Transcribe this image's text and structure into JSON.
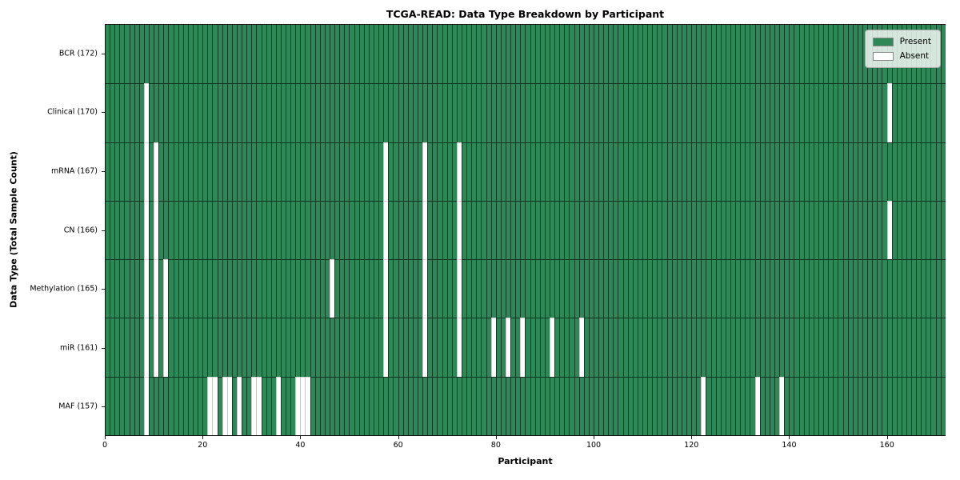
{
  "chart_data": {
    "type": "heatmap",
    "title": "TCGA-READ: Data Type Breakdown by Participant",
    "xlabel": "Participant",
    "ylabel": "Data Type (Total Sample Count)",
    "x_ticks": [
      0,
      20,
      40,
      60,
      80,
      100,
      120,
      140,
      160
    ],
    "xlim": [
      0,
      172
    ],
    "n_participants": 172,
    "grid": "cell-edge-lines",
    "cell_states": {
      "present_value": 1,
      "absent_value": 0
    },
    "legend": {
      "position": "upper right",
      "entries": [
        {
          "label": "Present",
          "color": "#2e8757"
        },
        {
          "label": "Absent",
          "color": "#ffffff"
        }
      ]
    },
    "rows": [
      {
        "label": "BCR (172)",
        "data_type": "BCR",
        "total": 172,
        "absent_participants": []
      },
      {
        "label": "Clinical (170)",
        "data_type": "Clinical",
        "total": 170,
        "absent_participants": [
          8,
          160
        ]
      },
      {
        "label": "mRNA (167)",
        "data_type": "mRNA",
        "total": 167,
        "absent_participants": [
          8,
          10,
          57,
          65,
          72
        ]
      },
      {
        "label": "CN (166)",
        "data_type": "CN",
        "total": 166,
        "absent_participants": [
          8,
          10,
          57,
          65,
          72,
          160
        ]
      },
      {
        "label": "Methylation (165)",
        "data_type": "Methylation",
        "total": 165,
        "absent_participants": [
          8,
          10,
          12,
          46,
          57,
          65,
          72
        ]
      },
      {
        "label": "miR (161)",
        "data_type": "miR",
        "total": 161,
        "absent_participants": [
          8,
          10,
          12,
          57,
          65,
          72,
          79,
          82,
          85,
          91,
          97
        ]
      },
      {
        "label": "MAF (157)",
        "data_type": "MAF",
        "total": 157,
        "absent_participants": [
          8,
          21,
          22,
          24,
          25,
          27,
          30,
          31,
          35,
          39,
          40,
          41,
          122,
          133,
          138
        ]
      }
    ]
  }
}
